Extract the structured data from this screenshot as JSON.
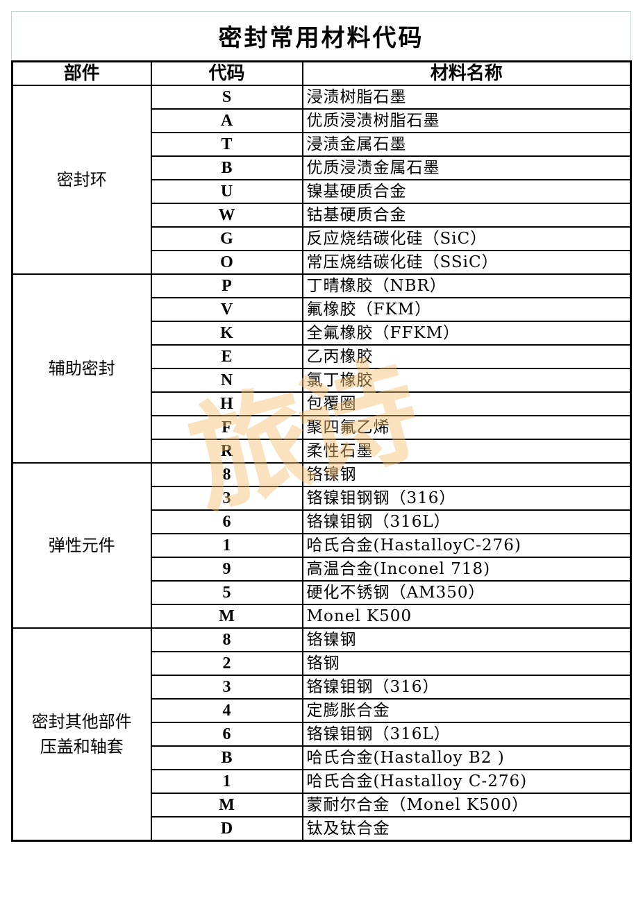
{
  "title": "密封常用材料代码",
  "headers": [
    "部件",
    "代码",
    "材料名称"
  ],
  "groups": [
    {
      "part": "密封环",
      "rows": [
        {
          "code": "S",
          "name": "浸渍树脂石墨"
        },
        {
          "code": "A",
          "name": "优质浸渍树脂石墨"
        },
        {
          "code": "T",
          "name": "浸渍金属石墨"
        },
        {
          "code": "B",
          "name": "优质浸渍金属石墨"
        },
        {
          "code": "U",
          "name": "镍基硬质合金"
        },
        {
          "code": "W",
          "name": "钴基硬质合金"
        },
        {
          "code": "G",
          "name": "反应烧结碳化硅（SiC）"
        },
        {
          "code": "O",
          "name": "常压烧结碳化硅（SSiC）"
        }
      ]
    },
    {
      "part": "辅助密封",
      "rows": [
        {
          "code": "P",
          "name": "丁晴橡胶（NBR）"
        },
        {
          "code": "V",
          "name": "氟橡胶（FKM）"
        },
        {
          "code": "K",
          "name": "全氟橡胶（FFKM）"
        },
        {
          "code": "E",
          "name": "乙丙橡胶"
        },
        {
          "code": "N",
          "name": "氯丁橡胶"
        },
        {
          "code": "H",
          "name": "包覆圈"
        },
        {
          "code": "F",
          "name": "聚四氟乙烯"
        },
        {
          "code": "R",
          "name": "柔性石墨"
        }
      ]
    },
    {
      "part": "弹性元件",
      "rows": [
        {
          "code": "8",
          "name": "铬镍钢"
        },
        {
          "code": "3",
          "name": "铬镍钼钢钢（316）"
        },
        {
          "code": "6",
          "name": "铬镍钼钢（316L）"
        },
        {
          "code": "1",
          "name": "哈氏合金(HastalloyC-276)"
        },
        {
          "code": "9",
          "name": "高温合金(Inconel 718)"
        },
        {
          "code": "5",
          "name": "硬化不锈钢（AM350）"
        },
        {
          "code": "M",
          "name": "Monel K500"
        }
      ]
    },
    {
      "part": "密封其他部件压盖和轴套",
      "rows": [
        {
          "code": "8",
          "name": "铬镍钢"
        },
        {
          "code": "2",
          "name": "铬钢"
        },
        {
          "code": "3",
          "name": "铬镍钼钢（316）"
        },
        {
          "code": "4",
          "name": "定膨胀合金"
        },
        {
          "code": "6",
          "name": "铬镍钼钢（316L）"
        },
        {
          "code": "B",
          "name": "哈氏合金(Hastalloy B2 )"
        },
        {
          "code": "1",
          "name": "哈氏合金(Hastalloy C-276)"
        },
        {
          "code": "M",
          "name": "蒙耐尔合金（Monel K500）"
        },
        {
          "code": "D",
          "name": "钛及钛合金"
        }
      ]
    }
  ],
  "watermark": {
    "text": "旅诗",
    "color": "#f5be6e"
  }
}
